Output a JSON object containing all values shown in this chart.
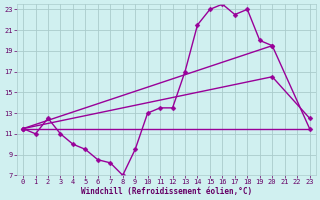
{
  "xlabel": "Windchill (Refroidissement éolien,°C)",
  "background_color": "#d0f0f0",
  "grid_color": "#aacccc",
  "line_color": "#990099",
  "xlim": [
    -0.5,
    23.5
  ],
  "ylim": [
    7,
    23.5
  ],
  "xticks": [
    0,
    1,
    2,
    3,
    4,
    5,
    6,
    7,
    8,
    9,
    10,
    11,
    12,
    13,
    14,
    15,
    16,
    17,
    18,
    19,
    20,
    21,
    22,
    23
  ],
  "yticks": [
    7,
    9,
    11,
    13,
    15,
    17,
    19,
    21,
    23
  ],
  "series": [
    {
      "x": [
        0,
        1,
        2,
        3,
        4,
        5,
        6,
        7,
        8,
        9,
        10,
        11,
        12,
        13,
        14,
        15,
        16,
        17,
        18,
        19,
        20
      ],
      "y": [
        11.5,
        11.0,
        12.5,
        11.0,
        10.0,
        9.5,
        8.5,
        8.2,
        7.0,
        9.5,
        13.0,
        13.5,
        13.5,
        17.0,
        21.5,
        23.0,
        23.5,
        22.5,
        23.0,
        20.0,
        19.5
      ],
      "marker": "D",
      "markersize": 2.5,
      "linewidth": 1.0
    },
    {
      "comment": "Straight diagonal line: (0,11.5) -> (20,19.5) -> (23,11.5)",
      "x": [
        0,
        20,
        23
      ],
      "y": [
        11.5,
        19.5,
        11.5
      ],
      "marker": "D",
      "markersize": 2.5,
      "linewidth": 1.0
    },
    {
      "comment": "Shorter diagonal line: (0,11.5) -> (20,16.5) -> (23,12.5)",
      "x": [
        0,
        20,
        23
      ],
      "y": [
        11.5,
        16.5,
        12.5
      ],
      "marker": "D",
      "markersize": 2.5,
      "linewidth": 1.0
    },
    {
      "x": [
        0,
        23
      ],
      "y": [
        11.5,
        11.5
      ],
      "marker": null,
      "markersize": 0,
      "linewidth": 1.0
    }
  ]
}
